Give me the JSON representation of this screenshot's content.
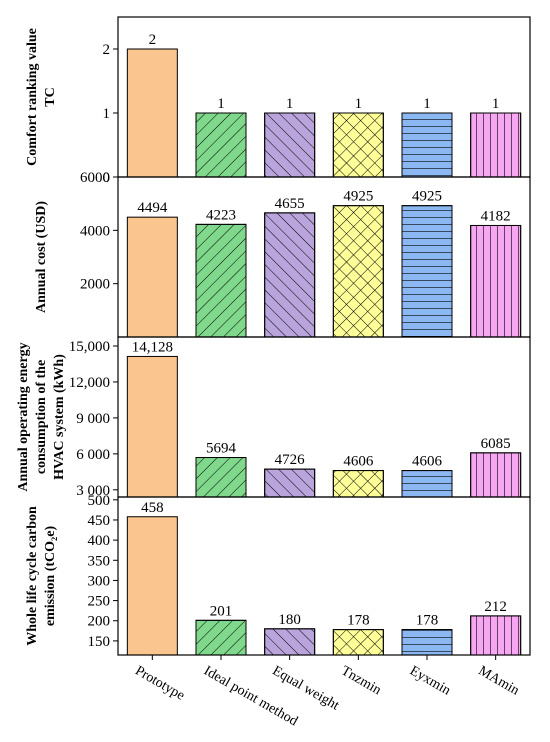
{
  "chart_data": [
    {
      "type": "bar",
      "ylabel": "Comfort ranking value TC",
      "values": [
        2,
        1,
        1,
        1,
        1,
        1
      ],
      "colors": [
        "#fbc590",
        "#7fd88b",
        "#b9a5dc",
        "#ffff99",
        "#8bb8f2",
        "#f7a6f2"
      ],
      "hatches": [
        "none",
        "/",
        "\\",
        "x",
        "-",
        "|"
      ],
      "ylim": [
        0,
        2.5
      ],
      "yticks": [
        0,
        1,
        2
      ]
    },
    {
      "type": "bar",
      "ylabel": "Annual cost (USD)",
      "values": [
        4494,
        4223,
        4655,
        4925,
        4925,
        4182
      ],
      "colors": [
        "#fbc590",
        "#7fd88b",
        "#b9a5dc",
        "#ffff99",
        "#8bb8f2",
        "#f7a6f2"
      ],
      "hatches": [
        "none",
        "/",
        "\\",
        "x",
        "-",
        "|"
      ],
      "ylim": [
        0,
        6000
      ],
      "yticks": [
        2000,
        4000,
        6000
      ]
    },
    {
      "type": "bar",
      "ylabel": "Annual operating energy consumption of the HVAC system (kWh)",
      "values": [
        14128,
        5694,
        4726,
        4606,
        4606,
        6085
      ],
      "value_labels": [
        "14,128",
        "5694",
        "4726",
        "4606",
        "4606",
        "6085"
      ],
      "colors": [
        "#fbc590",
        "#7fd88b",
        "#b9a5dc",
        "#ffff99",
        "#8bb8f2",
        "#f7a6f2"
      ],
      "hatches": [
        "none",
        "/",
        "\\",
        "x",
        "-",
        "|"
      ],
      "ylim": [
        2400,
        15750
      ],
      "yticks": [
        {
          "value": 3000,
          "label": "3 000"
        },
        {
          "value": 6000,
          "label": "6 000"
        },
        {
          "value": 9000,
          "label": "9 000"
        },
        {
          "value": 12000,
          "label": "12,000"
        },
        {
          "value": 15000,
          "label": "15,000"
        }
      ]
    },
    {
      "type": "bar",
      "ylabel": "Whole life cycle carbon emission (tCO₂e)",
      "categories": [
        "Prototype",
        "Ideal point method",
        "Equal weight",
        "Tnzmin",
        "Eyxmin",
        "MAmin"
      ],
      "values": [
        458,
        201,
        180,
        178,
        178,
        212
      ],
      "colors": [
        "#fbc590",
        "#7fd88b",
        "#b9a5dc",
        "#ffff99",
        "#8bb8f2",
        "#f7a6f2"
      ],
      "hatches": [
        "none",
        "/",
        "\\",
        "x",
        "-",
        "|"
      ],
      "ylim": [
        115,
        507
      ],
      "yticks": [
        150,
        200,
        250,
        300,
        350,
        400,
        450,
        500
      ]
    }
  ]
}
